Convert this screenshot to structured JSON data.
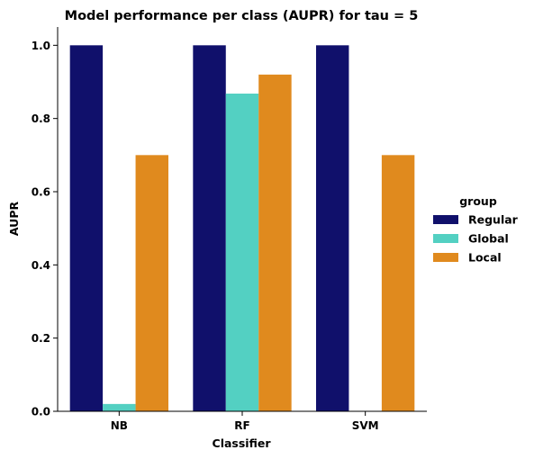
{
  "chart_data": {
    "type": "bar",
    "title": "Model performance per class (AUPR) for tau = 5",
    "xlabel": "Classifier",
    "ylabel": "AUPR",
    "categories": [
      "NB",
      "RF",
      "SVM"
    ],
    "ylim": [
      0,
      1.05
    ],
    "yticks": [
      "0.0",
      "0.2",
      "0.4",
      "0.6",
      "0.8",
      "1.0"
    ],
    "grid": false,
    "legend": {
      "title": "group",
      "placement": "right"
    },
    "series": [
      {
        "name": "Regular",
        "color": "#10106b",
        "values": [
          1.0,
          1.0,
          1.0
        ]
      },
      {
        "name": "Global",
        "color": "#53d0c2",
        "values": [
          0.02,
          0.868,
          0.0
        ]
      },
      {
        "name": "Local",
        "color": "#e08a1e",
        "values": [
          0.7,
          0.92,
          0.7
        ]
      }
    ]
  }
}
